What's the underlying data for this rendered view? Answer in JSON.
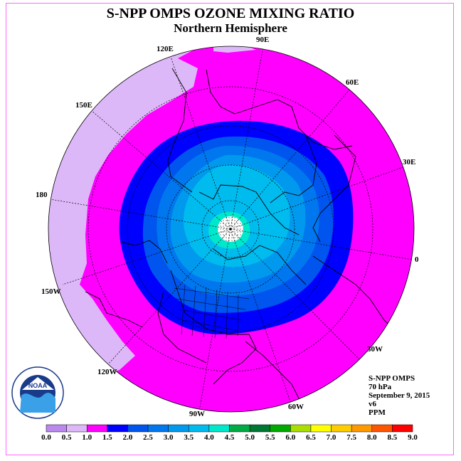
{
  "header": {
    "title": "S-NPP OMPS OZONE MIXING RATIO",
    "subtitle": "Northern Hemisphere"
  },
  "longitude_labels": [
    "90E",
    "60E",
    "30E",
    "0",
    "30W",
    "60W",
    "90W",
    "120W",
    "150W",
    "180",
    "150E",
    "120E"
  ],
  "info": {
    "instrument": "S-NPP OMPS",
    "level": "70 hPa",
    "date": "September 9, 2015",
    "version": "v6",
    "units": "PPM"
  },
  "logo": {
    "text": "NOAA",
    "icon": "noaa-logo-icon"
  },
  "colorbar": {
    "ticks": [
      "0.0",
      "0.5",
      "1.0",
      "1.5",
      "2.0",
      "2.5",
      "3.0",
      "3.5",
      "4.0",
      "4.5",
      "5.0",
      "5.5",
      "6.0",
      "6.5",
      "7.0",
      "7.5",
      "8.0",
      "8.5",
      "9.0"
    ],
    "colors": [
      "#bb88ee",
      "#ddb8f8",
      "#ff00ff",
      "#0000ff",
      "#0055ee",
      "#0077ee",
      "#0099ee",
      "#00bbee",
      "#00e8cc",
      "#00aa44",
      "#007733",
      "#00aa00",
      "#aadd00",
      "#ffff00",
      "#ffcc00",
      "#ff9900",
      "#ff5500",
      "#ff0000",
      "#885533"
    ]
  }
}
